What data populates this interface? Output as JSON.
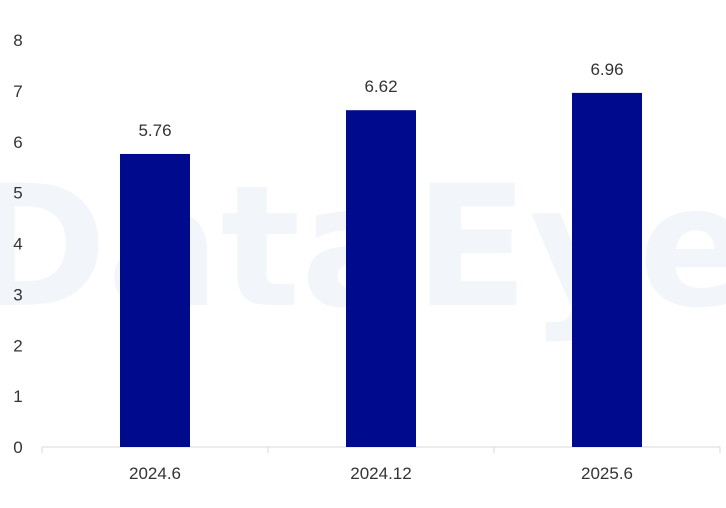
{
  "watermark": "DataEye",
  "chart_data": {
    "type": "bar",
    "categories": [
      "2024.6",
      "2024.12",
      "2025.6"
    ],
    "values": [
      5.76,
      6.62,
      6.96
    ],
    "data_labels": [
      "5.76",
      "6.62",
      "6.96"
    ],
    "y_ticks": [
      "0",
      "1",
      "2",
      "3",
      "4",
      "5",
      "6",
      "7",
      "8"
    ],
    "ylim": [
      0,
      8
    ],
    "grid": false,
    "legend": "none",
    "title": "",
    "xlabel": "",
    "ylabel": "",
    "bar_color": "#000a8c",
    "axis_color": "#d9d9d9"
  }
}
